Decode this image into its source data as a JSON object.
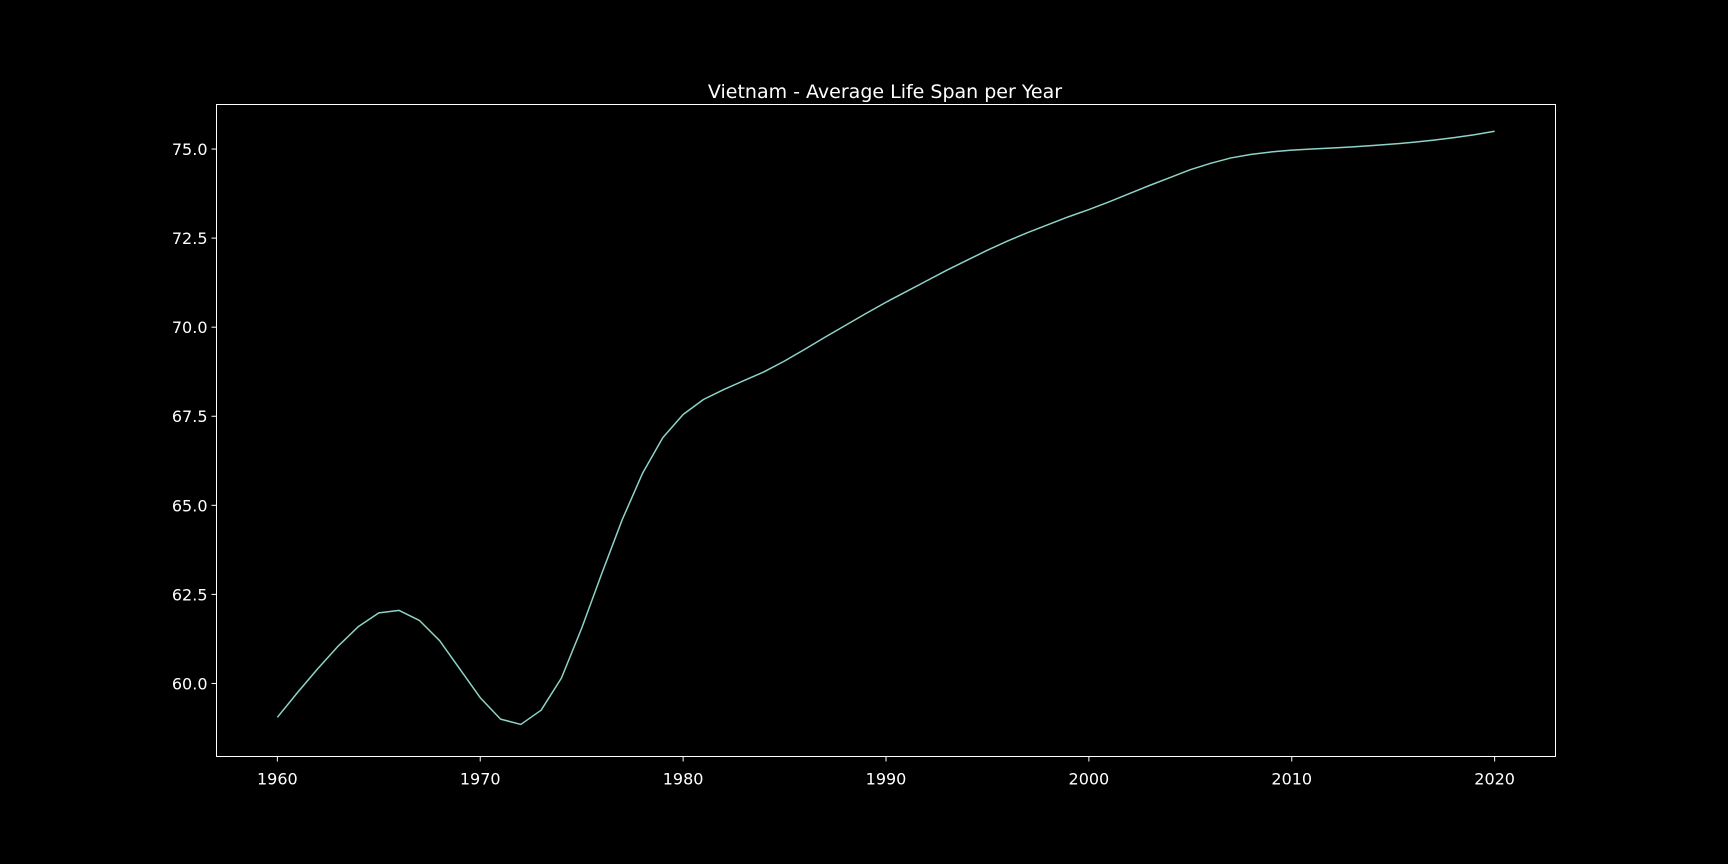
{
  "chart_data": {
    "type": "line",
    "title": "Vietnam - Average Life Span per Year",
    "xlabel": "",
    "ylabel": "",
    "xlim": [
      1957,
      2023
    ],
    "ylim": [
      57.95,
      76.25
    ],
    "x_ticks": [
      1960,
      1970,
      1980,
      1990,
      2000,
      2010,
      2020
    ],
    "y_ticks": [
      60.0,
      62.5,
      65.0,
      67.5,
      70.0,
      72.5,
      75.0
    ],
    "grid": false,
    "colors": {
      "background": "#000000",
      "line": "#8dd3c7",
      "text": "#ffffff"
    },
    "series": [
      {
        "x": [
          1960,
          1961,
          1962,
          1963,
          1964,
          1965,
          1966,
          1967,
          1968,
          1969,
          1970,
          1971,
          1972,
          1973,
          1974,
          1975,
          1976,
          1977,
          1978,
          1979,
          1980,
          1981,
          1982,
          1983,
          1984,
          1985,
          1986,
          1987,
          1988,
          1989,
          1990,
          1991,
          1992,
          1993,
          1994,
          1995,
          1996,
          1997,
          1998,
          1999,
          2000,
          2001,
          2002,
          2003,
          2004,
          2005,
          2006,
          2007,
          2008,
          2009,
          2010,
          2011,
          2012,
          2013,
          2014,
          2015,
          2016,
          2017,
          2018,
          2019,
          2020
        ],
        "values": [
          59.05,
          59.75,
          60.42,
          61.05,
          61.6,
          61.98,
          62.05,
          61.77,
          61.2,
          60.4,
          59.6,
          59.0,
          58.85,
          59.25,
          60.15,
          61.55,
          63.1,
          64.6,
          65.9,
          66.9,
          67.55,
          67.97,
          68.25,
          68.5,
          68.75,
          69.05,
          69.38,
          69.72,
          70.05,
          70.38,
          70.7,
          71.0,
          71.3,
          71.6,
          71.88,
          72.16,
          72.42,
          72.66,
          72.88,
          73.1,
          73.3,
          73.52,
          73.75,
          73.98,
          74.2,
          74.42,
          74.6,
          74.75,
          74.85,
          74.92,
          74.97,
          75.0,
          75.03,
          75.06,
          75.1,
          75.14,
          75.19,
          75.25,
          75.32,
          75.4,
          75.5
        ]
      }
    ]
  }
}
